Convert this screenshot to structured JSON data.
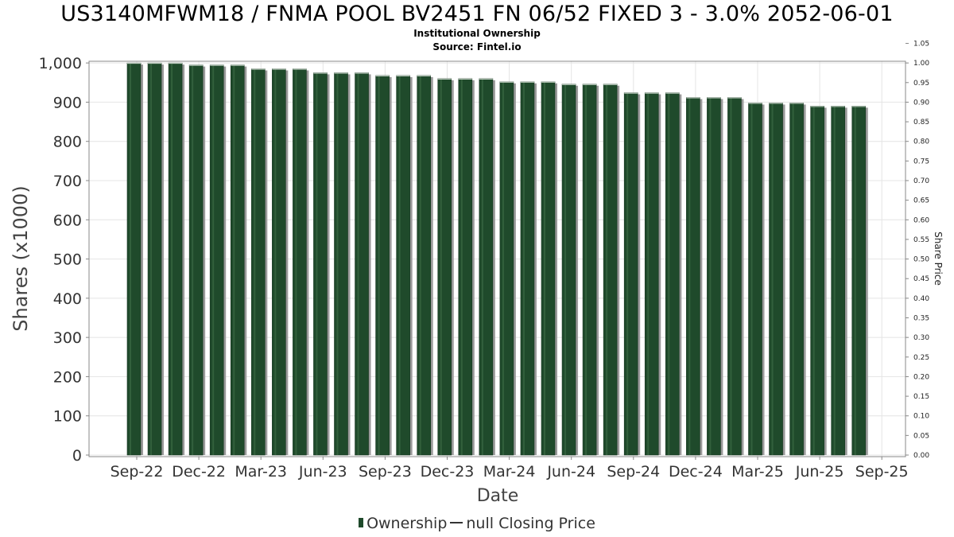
{
  "title": "US3140MFWM18 / FNMA POOL BV2451 FN 06/52 FIXED 3 - 3.0% 2052-06-01",
  "subtitle": "Institutional Ownership",
  "source": "Source: Fintel.io",
  "legend": {
    "ownership_label": "Ownership",
    "price_label": "null Closing Price"
  },
  "colors": {
    "bar": "#1f4a2b",
    "bar_highlight": "#3a6a45",
    "bar_shadow": "#9a9a9a",
    "grid": "#e4e4e4",
    "axis": "#888888"
  },
  "chart_data": {
    "type": "bar",
    "title": "US3140MFWM18 / FNMA POOL BV2451 FN 06/52 FIXED 3 - 3.0% 2052-06-01",
    "xlabel": "Date",
    "ylabel": "Shares (x1000)",
    "y2label": "Share Price",
    "ylim": [
      0,
      1050
    ],
    "y2lim": [
      0,
      1.05
    ],
    "yticks": [
      0,
      100,
      200,
      300,
      400,
      500,
      600,
      700,
      800,
      900,
      1000
    ],
    "ytick_labels": [
      "0",
      "100",
      "200",
      "300",
      "400",
      "500",
      "600",
      "700",
      "800",
      "900",
      "1,000"
    ],
    "y2ticks": [
      "0.00",
      "0.05",
      "0.10",
      "0.15",
      "0.20",
      "0.25",
      "0.30",
      "0.35",
      "0.40",
      "0.45",
      "0.50",
      "0.55",
      "0.60",
      "0.65",
      "0.70",
      "0.75",
      "0.80",
      "0.85",
      "0.90",
      "0.95",
      "1.00",
      "1.05"
    ],
    "xticks": [
      "Sep-22",
      "Dec-22",
      "Mar-23",
      "Jun-23",
      "Sep-23",
      "Dec-23",
      "Mar-24",
      "Jun-24",
      "Sep-24",
      "Dec-24",
      "Mar-25",
      "Jun-25",
      "Sep-25"
    ],
    "grid": true,
    "legend_position": "bottom",
    "series": [
      {
        "name": "Ownership",
        "values": [
          1000,
          1000,
          1000,
          995,
          995,
          995,
          985,
          985,
          985,
          975,
          975,
          975,
          968,
          968,
          968,
          960,
          960,
          960,
          952,
          952,
          952,
          946,
          946,
          946,
          924,
          924,
          924,
          912,
          912,
          912,
          898,
          898,
          898,
          890,
          890,
          890
        ]
      }
    ]
  }
}
